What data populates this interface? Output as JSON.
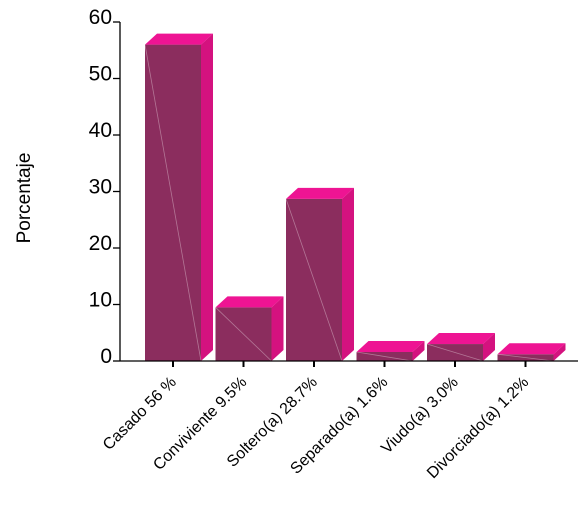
{
  "chart_data": {
    "type": "bar",
    "ylabel": "Porcentaje",
    "xlabel": "",
    "title": "",
    "ylim": [
      0,
      60
    ],
    "yticks": [
      0,
      10,
      20,
      30,
      40,
      50,
      60
    ],
    "grid": false,
    "style": "3d",
    "categories": [
      "Casado 56 %",
      "Conviviente  9.5%",
      "Soltero(a) 28.7%",
      "Separado(a) 1.6%",
      "Viudo(a) 3.0%",
      "Divorciado(a) 1.2%"
    ],
    "values": [
      56,
      9.5,
      28.7,
      1.6,
      3.0,
      1.2
    ],
    "colors": {
      "front": "#8B2D5E",
      "top": "#EE1493",
      "side": "#D4127F",
      "axis": "#000000"
    }
  }
}
